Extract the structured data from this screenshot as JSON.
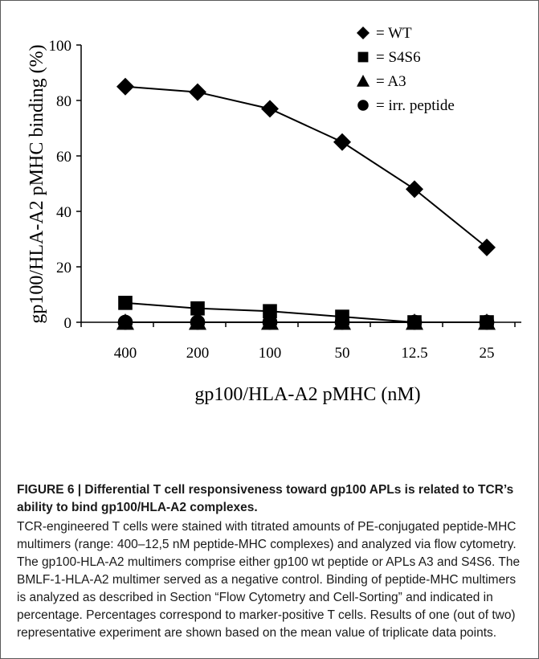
{
  "chart_data": {
    "type": "line",
    "categories": [
      "400",
      "200",
      "100",
      "50",
      "12.5",
      "25"
    ],
    "ylabel": "gp100/HLA-A2 pMHC binding (%)",
    "xlabel": "gp100/HLA-A2 pMHC (nM)",
    "ylim": [
      0,
      100
    ],
    "yticks": [
      "0",
      "20",
      "40",
      "60",
      "80",
      "100"
    ],
    "grid": false,
    "legend_position": "top-right",
    "series": [
      {
        "name": "= WT",
        "marker": "diamond",
        "values": [
          85,
          83,
          77,
          65,
          48,
          27
        ]
      },
      {
        "name": "= S4S6",
        "marker": "square",
        "values": [
          7,
          5,
          4,
          2,
          0,
          0
        ]
      },
      {
        "name": "= A3",
        "marker": "triangle",
        "values": [
          0,
          0,
          0,
          0,
          0,
          0
        ]
      },
      {
        "name": "= irr. peptide",
        "marker": "circle",
        "values": [
          0,
          0,
          0,
          0,
          0,
          0
        ]
      }
    ]
  },
  "caption": {
    "title": "FIGURE 6 | Differential T cell responsiveness toward gp100 APLs is related to TCR’s ability to bind gp100/HLA-A2 complexes.",
    "body": "TCR-engineered T cells were stained with titrated amounts of PE-conjugated peptide-MHC multimers (range: 400–12,5 nM peptide-MHC complexes) and analyzed via flow cytometry. The gp100-HLA-A2 multimers comprise either gp100 wt peptide or APLs A3 and S4S6. The BMLF-1-HLA-A2 multimer served as a negative control. Binding of peptide-MHC multimers is analyzed as described in Section “Flow Cytometry and Cell-Sorting” and indicated in percentage. Percentages correspond to marker-positive T cells. Results of one (out of two) representative experiment are shown based on the mean value of triplicate data points."
  }
}
